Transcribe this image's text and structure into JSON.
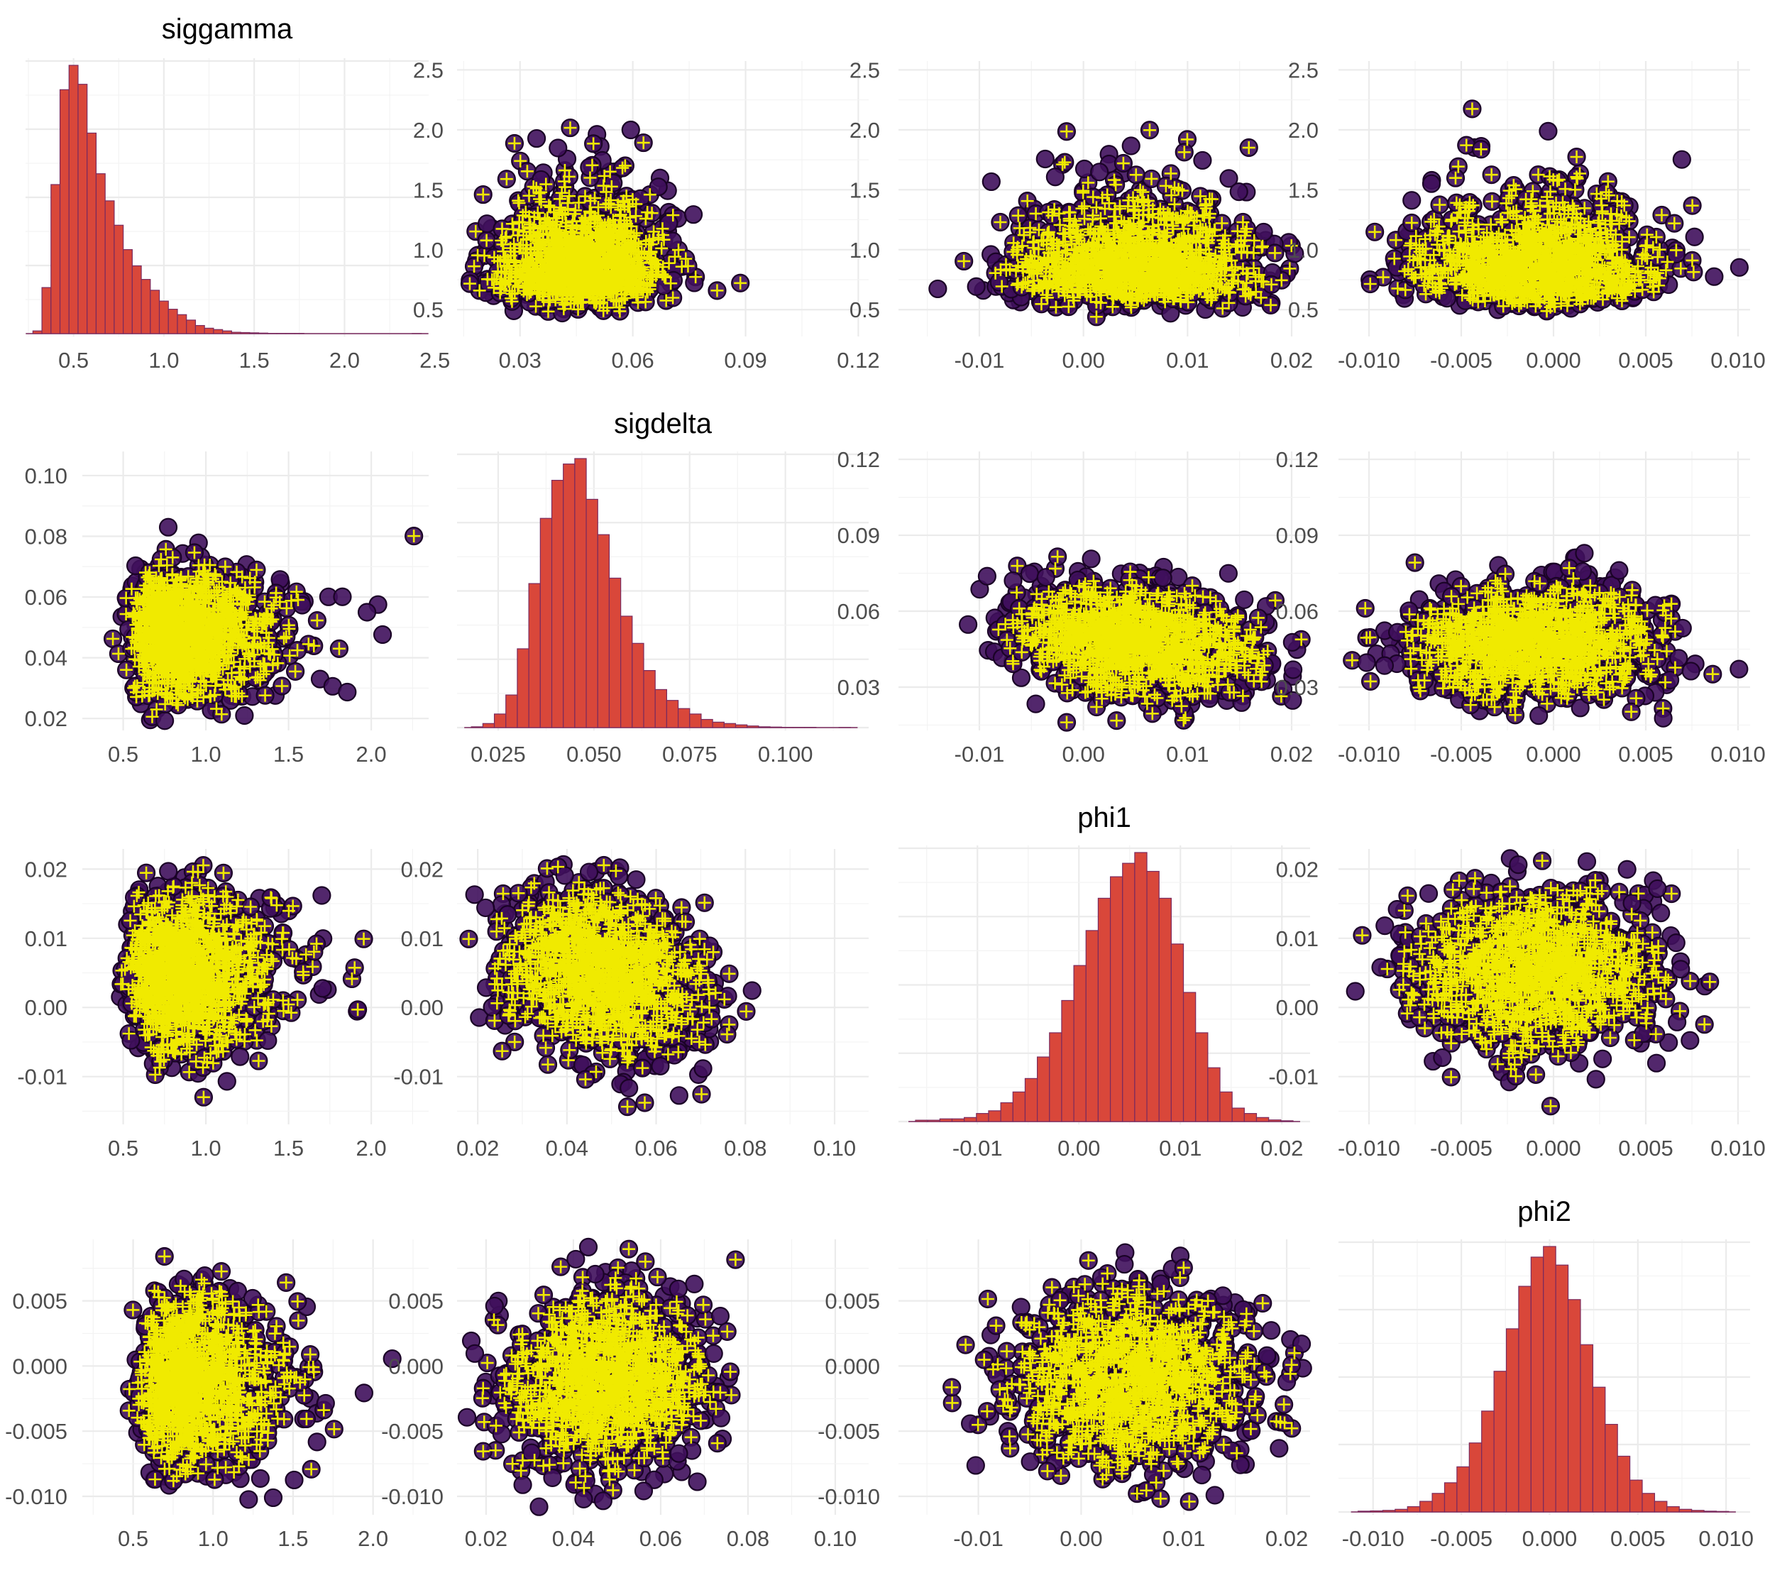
{
  "chart_data": {
    "type": "scatter",
    "layout": "pairs-matrix",
    "colors": {
      "hist_fill": "#d9473a",
      "hist_edge": "#7a2a5e",
      "point_fill": "#3f0f5c",
      "point_edge": "#1a0326",
      "cross": "#f0ea00",
      "grid": "#ebebeb"
    },
    "variables": [
      {
        "name": "siggamma",
        "limits": [
          0.25,
          2.5
        ],
        "ticks": [
          0.5,
          1.0,
          1.5,
          2.0,
          2.5
        ],
        "tick_labels": [
          "0.5",
          "1.0",
          "1.5",
          "2.0",
          "2.5"
        ]
      },
      {
        "name": "sigdelta",
        "limits": [
          0.015,
          0.12
        ],
        "ticks": [
          0.025,
          0.05,
          0.075,
          0.1
        ],
        "tick_labels": [
          "0.025",
          "0.050",
          "0.075",
          "0.100"
        ]
      },
      {
        "name": "phi1",
        "limits": [
          -0.017,
          0.022
        ],
        "ticks": [
          -0.01,
          0.0,
          0.01,
          0.02
        ],
        "tick_labels": [
          "-0.01",
          "0.00",
          "0.01",
          "0.02"
        ]
      },
      {
        "name": "phi2",
        "limits": [
          -0.0115,
          0.0105
        ],
        "ticks": [
          -0.01,
          -0.005,
          0.0,
          0.005,
          0.01
        ],
        "tick_labels": [
          "-0.010",
          "-0.005",
          "0.000",
          "0.005",
          "0.010"
        ]
      }
    ],
    "panels": [
      {
        "row": 0,
        "col": 0,
        "type": "histogram",
        "title": "siggamma",
        "x_ticks": [
          0.5,
          1.0,
          1.5,
          2.0,
          2.5
        ],
        "x_tick_labels": [
          "0.5",
          "1.0",
          "1.5",
          "2.0",
          "2.5"
        ],
        "x_range": [
          0.25,
          2.45
        ],
        "bins": [
          0.3,
          0.35,
          0.4,
          0.45,
          0.5,
          0.55,
          0.6,
          0.65,
          0.7,
          0.75,
          0.8,
          0.85,
          0.9,
          0.95,
          1.0,
          1.05,
          1.1,
          1.15,
          1.2,
          1.25,
          1.3,
          1.35,
          1.4,
          1.45,
          1.5,
          1.55,
          1.6,
          1.65,
          1.7,
          1.75,
          1.8,
          1.85,
          1.9,
          1.95,
          2.0,
          2.05,
          2.1,
          2.15,
          2.2,
          2.25,
          2.3,
          2.35,
          2.4
        ],
        "counts": [
          1,
          17,
          55,
          90,
          99,
          92,
          74,
          59,
          49,
          40,
          31,
          25,
          20,
          16,
          12,
          9,
          7,
          5,
          3,
          2,
          1.5,
          1,
          0.5,
          0.4,
          0.3,
          0.2,
          0.1,
          0.1,
          0.1,
          0.1,
          0,
          0,
          0,
          0,
          0,
          0,
          0,
          0,
          0,
          0,
          0,
          0,
          0.05
        ]
      },
      {
        "row": 0,
        "col": 1,
        "type": "scatter",
        "x": "sigdelta",
        "y": "siggamma",
        "x_ticks": [
          0.03,
          0.06,
          0.09,
          0.12
        ],
        "x_tick_labels": [
          "0.03",
          "0.06",
          "0.09",
          "0.12"
        ],
        "x_range": [
          0.014,
          0.122
        ],
        "y_ticks": [
          0.5,
          1.0,
          1.5,
          2.0,
          2.5
        ],
        "y_tick_labels": [
          "0.5",
          "1.0",
          "1.5",
          "2.0",
          "2.5"
        ],
        "y_range": [
          0.3,
          2.55
        ]
      },
      {
        "row": 0,
        "col": 2,
        "type": "scatter",
        "x": "phi1",
        "y": "siggamma",
        "x_ticks": [
          -0.01,
          0.0,
          0.01,
          0.02
        ],
        "x_tick_labels": [
          "-0.01",
          "0.00",
          "0.01",
          "0.02"
        ],
        "x_range": [
          -0.0175,
          0.0215
        ],
        "y_ticks": [
          0.5,
          1.0,
          1.5,
          2.0,
          2.5
        ],
        "y_tick_labels": [
          "0.5",
          "1.0",
          "1.5",
          "2.0",
          "2.5"
        ],
        "y_range": [
          0.3,
          2.55
        ]
      },
      {
        "row": 0,
        "col": 3,
        "type": "scatter",
        "x": "phi2",
        "y": "siggamma",
        "x_ticks": [
          -0.01,
          -0.005,
          0.0,
          0.005,
          0.01
        ],
        "x_tick_labels": [
          "-0.010",
          "-0.005",
          "0.000",
          "0.005",
          "0.010"
        ],
        "x_range": [
          -0.0115,
          0.0105
        ],
        "y_ticks": [
          0.5,
          1.0,
          1.5,
          2.0,
          2.5
        ],
        "y_tick_labels": [
          "0.5",
          "1.0",
          "1.5",
          "2.0",
          "2.5"
        ],
        "y_range": [
          0.3,
          2.55
        ]
      },
      {
        "row": 1,
        "col": 0,
        "type": "scatter",
        "x": "siggamma",
        "y": "sigdelta",
        "x_ticks": [
          0.5,
          1.0,
          1.5,
          2.0
        ],
        "x_tick_labels": [
          "0.5",
          "1.0",
          "1.5",
          "2.0"
        ],
        "x_range": [
          0.27,
          2.33
        ],
        "y_ticks": [
          0.02,
          0.04,
          0.06,
          0.08,
          0.1
        ],
        "y_tick_labels": [
          "0.02",
          "0.04",
          "0.06",
          "0.08",
          "0.10"
        ],
        "y_range": [
          0.017,
          0.107
        ]
      },
      {
        "row": 1,
        "col": 1,
        "type": "histogram",
        "title": "sigdelta",
        "x_ticks": [
          0.025,
          0.05,
          0.075,
          0.1
        ],
        "x_tick_labels": [
          "0.025",
          "0.050",
          "0.075",
          "0.100"
        ],
        "x_range": [
          0.015,
          0.121
        ],
        "bins": [
          0.0195,
          0.0225,
          0.0255,
          0.0285,
          0.0315,
          0.0345,
          0.0375,
          0.0405,
          0.0435,
          0.0465,
          0.0495,
          0.0525,
          0.0555,
          0.0585,
          0.0615,
          0.0645,
          0.0675,
          0.0705,
          0.0735,
          0.0765,
          0.0795,
          0.0825,
          0.0855,
          0.0885,
          0.0915,
          0.0945,
          0.0975,
          0.1005,
          0.1035,
          0.1065,
          0.1095,
          0.1125,
          0.1155
        ],
        "counts": [
          0.3,
          1.5,
          5,
          12,
          29,
          53,
          77,
          91,
          97,
          99,
          84,
          71,
          55,
          41,
          31,
          21,
          14,
          10,
          7,
          5,
          3,
          2,
          1.5,
          1,
          0.6,
          0.3,
          0.2,
          0.1,
          0.1,
          0.1,
          0,
          0,
          0.05
        ]
      },
      {
        "row": 1,
        "col": 2,
        "type": "scatter",
        "x": "phi1",
        "y": "sigdelta",
        "x_ticks": [
          -0.01,
          0.0,
          0.01,
          0.02
        ],
        "x_tick_labels": [
          "-0.01",
          "0.00",
          "0.01",
          "0.02"
        ],
        "x_range": [
          -0.0175,
          0.0215
        ],
        "y_ticks": [
          0.03,
          0.06,
          0.09,
          0.12
        ],
        "y_tick_labels": [
          "0.03",
          "0.06",
          "0.09",
          "0.12"
        ],
        "y_range": [
          0.014,
          0.122
        ]
      },
      {
        "row": 1,
        "col": 3,
        "type": "scatter",
        "x": "phi2",
        "y": "sigdelta",
        "x_ticks": [
          -0.01,
          -0.005,
          0.0,
          0.005,
          0.01
        ],
        "x_tick_labels": [
          "-0.010",
          "-0.005",
          "0.000",
          "0.005",
          "0.010"
        ],
        "x_range": [
          -0.0115,
          0.0105
        ],
        "y_ticks": [
          0.03,
          0.06,
          0.09,
          0.12
        ],
        "y_tick_labels": [
          "0.03",
          "0.06",
          "0.09",
          "0.12"
        ],
        "y_range": [
          0.014,
          0.122
        ]
      },
      {
        "row": 2,
        "col": 0,
        "type": "scatter",
        "x": "siggamma",
        "y": "phi1",
        "x_ticks": [
          0.5,
          1.0,
          1.5,
          2.0
        ],
        "x_tick_labels": [
          "0.5",
          "1.0",
          "1.5",
          "2.0"
        ],
        "x_range": [
          0.27,
          2.33
        ],
        "y_ticks": [
          -0.01,
          0.0,
          0.01,
          0.02
        ],
        "y_tick_labels": [
          "-0.01",
          "0.00",
          "0.01",
          "0.02"
        ],
        "y_range": [
          -0.0165,
          0.0225
        ]
      },
      {
        "row": 2,
        "col": 1,
        "type": "scatter",
        "x": "sigdelta",
        "y": "phi1",
        "x_ticks": [
          0.02,
          0.04,
          0.06,
          0.08,
          0.1
        ],
        "x_tick_labels": [
          "0.02",
          "0.04",
          "0.06",
          "0.08",
          "0.10"
        ],
        "x_range": [
          0.016,
          0.107
        ],
        "y_ticks": [
          -0.01,
          0.0,
          0.01,
          0.02
        ],
        "y_tick_labels": [
          "-0.01",
          "0.00",
          "0.01",
          "0.02"
        ],
        "y_range": [
          -0.0165,
          0.0225
        ]
      },
      {
        "row": 2,
        "col": 2,
        "type": "histogram",
        "title": "phi1",
        "x_ticks": [
          -0.01,
          0.0,
          0.01,
          0.02
        ],
        "x_tick_labels": [
          "-0.01",
          "0.00",
          "0.01",
          "0.02"
        ],
        "x_range": [
          -0.0175,
          0.0225
        ],
        "bins": [
          -0.0155,
          -0.0143,
          -0.0131,
          -0.0119,
          -0.0107,
          -0.0095,
          -0.0083,
          -0.0071,
          -0.0059,
          -0.0047,
          -0.0035,
          -0.0023,
          -0.0011,
          0.0001,
          0.0013,
          0.0025,
          0.0037,
          0.0049,
          0.0061,
          0.0073,
          0.0085,
          0.0097,
          0.0109,
          0.0121,
          0.0133,
          0.0145,
          0.0157,
          0.0169,
          0.0181,
          0.0193,
          0.0205
        ],
        "counts": [
          0.5,
          0.5,
          1,
          1,
          1.5,
          3,
          4,
          7,
          11,
          16,
          24,
          33,
          45,
          58,
          71,
          83,
          91,
          96,
          100,
          93,
          83,
          66,
          48,
          33,
          20,
          11,
          5,
          3,
          1.5,
          0.6,
          0.3
        ]
      },
      {
        "row": 2,
        "col": 3,
        "type": "scatter",
        "x": "phi2",
        "y": "phi1",
        "x_ticks": [
          -0.01,
          -0.005,
          0.0,
          0.005,
          0.01
        ],
        "x_tick_labels": [
          "-0.010",
          "-0.005",
          "0.000",
          "0.005",
          "0.010"
        ],
        "x_range": [
          -0.0115,
          0.0105
        ],
        "y_ticks": [
          -0.01,
          0.0,
          0.01,
          0.02
        ],
        "y_tick_labels": [
          "-0.01",
          "0.00",
          "0.01",
          "0.02"
        ],
        "y_range": [
          -0.0165,
          0.0225
        ]
      },
      {
        "row": 3,
        "col": 0,
        "type": "scatter",
        "x": "siggamma",
        "y": "phi2",
        "x_ticks": [
          0.5,
          1.0,
          1.5,
          2.0
        ],
        "x_tick_labels": [
          "0.5",
          "1.0",
          "1.5",
          "2.0"
        ],
        "x_range": [
          0.2,
          2.33
        ],
        "y_ticks": [
          -0.01,
          -0.005,
          0.0,
          0.005
        ],
        "y_tick_labels": [
          "-0.010",
          "-0.005",
          "0.000",
          "0.005"
        ],
        "y_range": [
          -0.0112,
          0.0095
        ]
      },
      {
        "row": 3,
        "col": 1,
        "type": "scatter",
        "x": "sigdelta",
        "y": "phi2",
        "x_ticks": [
          0.02,
          0.04,
          0.06,
          0.08,
          0.1
        ],
        "x_tick_labels": [
          "0.02",
          "0.04",
          "0.06",
          "0.08",
          "0.10"
        ],
        "x_range": [
          0.014,
          0.107
        ],
        "y_ticks": [
          -0.01,
          -0.005,
          0.0,
          0.005
        ],
        "y_tick_labels": [
          "-0.010",
          "-0.005",
          "0.000",
          "0.005"
        ],
        "y_range": [
          -0.0112,
          0.0095
        ]
      },
      {
        "row": 3,
        "col": 2,
        "type": "scatter",
        "x": "phi1",
        "y": "phi2",
        "x_ticks": [
          -0.01,
          0.0,
          0.01,
          0.02
        ],
        "x_tick_labels": [
          "-0.01",
          "0.00",
          "0.01",
          "0.02"
        ],
        "x_range": [
          -0.0175,
          0.022
        ],
        "y_ticks": [
          -0.01,
          -0.005,
          0.0,
          0.005
        ],
        "y_tick_labels": [
          "-0.010",
          "-0.005",
          "0.000",
          "0.005"
        ],
        "y_range": [
          -0.0112,
          0.0095
        ]
      },
      {
        "row": 3,
        "col": 3,
        "type": "histogram",
        "title": "phi2",
        "x_ticks": [
          -0.01,
          -0.005,
          0.0,
          0.005,
          0.01
        ],
        "x_tick_labels": [
          "-0.010",
          "-0.005",
          "0.000",
          "0.005",
          "0.010"
        ],
        "x_range": [
          -0.0118,
          0.0112
        ],
        "bins": [
          -0.0105,
          -0.0098,
          -0.0091,
          -0.0084,
          -0.0077,
          -0.007,
          -0.0063,
          -0.0056,
          -0.0049,
          -0.0042,
          -0.0035,
          -0.0028,
          -0.0021,
          -0.0014,
          -0.0007,
          0.0,
          0.0007,
          0.0014,
          0.0021,
          0.0028,
          0.0035,
          0.0042,
          0.0049,
          0.0056,
          0.0063,
          0.007,
          0.0077,
          0.0084,
          0.0091,
          0.0098
        ],
        "counts": [
          0.3,
          0.4,
          0.6,
          1,
          2,
          4,
          7,
          11,
          17,
          26,
          38,
          53,
          69,
          85,
          96,
          100,
          93,
          80,
          63,
          47,
          33,
          21,
          12,
          7,
          4,
          2,
          1,
          0.6,
          0.3,
          0.2
        ]
      }
    ],
    "scatter_clouds": {
      "0_1": {
        "cx": 0.046,
        "sx": 0.0105,
        "cy": 0.82,
        "sy": 0.3,
        "rho": 0,
        "skew_y": true
      },
      "0_2": {
        "cx": 0.005,
        "sx": 0.0056,
        "cy": 0.82,
        "sy": 0.3,
        "rho": 0,
        "skew_y": true
      },
      "0_3": {
        "cx": -0.001,
        "sx": 0.0031,
        "cy": 0.82,
        "sy": 0.3,
        "rho": 0,
        "skew_y": true
      },
      "1_0": {
        "cx": 0.82,
        "sx": 0.3,
        "cy": 0.048,
        "sy": 0.0105,
        "rho": 0,
        "skew_x": true
      },
      "1_2": {
        "cx": 0.005,
        "sx": 0.0056,
        "cy": 0.048,
        "sy": 0.0105,
        "rho": -0.25
      },
      "1_3": {
        "cx": -0.001,
        "sx": 0.0031,
        "cy": 0.048,
        "sy": 0.0105,
        "rho": 0
      },
      "2_0": {
        "cx": 0.82,
        "sx": 0.3,
        "cy": 0.005,
        "sy": 0.0056,
        "rho": 0,
        "skew_x": true
      },
      "2_1": {
        "cx": 0.048,
        "sx": 0.0105,
        "cy": 0.005,
        "sy": 0.0056,
        "rho": -0.25
      },
      "2_3": {
        "cx": -0.001,
        "sx": 0.0031,
        "cy": 0.005,
        "sy": 0.0056,
        "rho": 0
      },
      "3_0": {
        "cx": 0.82,
        "sx": 0.3,
        "cy": -0.001,
        "sy": 0.0031,
        "rho": 0,
        "skew_x": true
      },
      "3_1": {
        "cx": 0.048,
        "sx": 0.0105,
        "cy": -0.001,
        "sy": 0.0031,
        "rho": 0
      },
      "3_2": {
        "cx": 0.005,
        "sx": 0.0056,
        "cy": -0.001,
        "sy": 0.0031,
        "rho": 0
      }
    },
    "grid": true,
    "legend": "none"
  }
}
